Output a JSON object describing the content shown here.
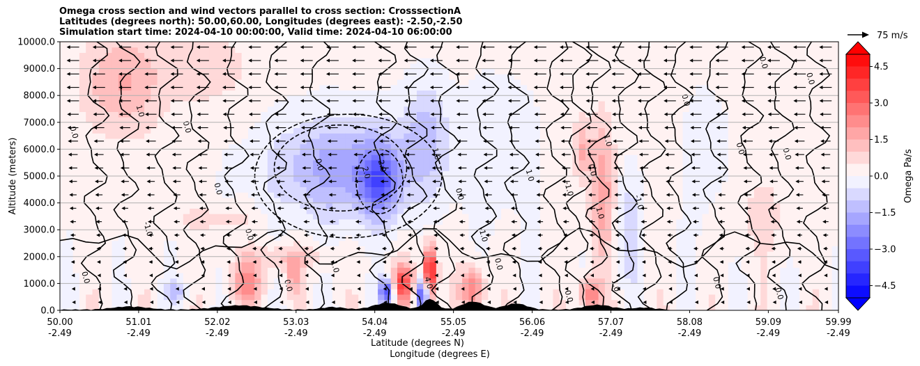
{
  "title_lines": [
    "Omega cross section and wind vectors parallel to cross section: CrosssectionA",
    "Latitudes (degrees north): 50.00,60.00, Longitudes (degrees east): -2.50,-2.50",
    "Simulation start time: 2024-04-10 00:00:00, Valid time: 2024-04-10 06:00:00"
  ],
  "chart_data": {
    "type": "heatmap",
    "title": "Omega cross section and wind vectors parallel to cross section: CrosssectionA",
    "ylabel": "Altitude (meters)",
    "xlabel_lines": [
      "Latitude (degrees N)",
      "Longitude (degrees E)"
    ],
    "ylim": [
      0,
      10000
    ],
    "yticks": [
      "0.0",
      "1000.0",
      "2000.0",
      "3000.0",
      "4000.0",
      "5000.0",
      "6000.0",
      "7000.0",
      "8000.0",
      "9000.0",
      "10000.0"
    ],
    "xticks": [
      {
        "lat": "50.00",
        "lon": "-2.49"
      },
      {
        "lat": "51.01",
        "lon": "-2.49"
      },
      {
        "lat": "52.02",
        "lon": "-2.49"
      },
      {
        "lat": "53.03",
        "lon": "-2.49"
      },
      {
        "lat": "54.04",
        "lon": "-2.49"
      },
      {
        "lat": "55.05",
        "lon": "-2.49"
      },
      {
        "lat": "56.06",
        "lon": "-2.49"
      },
      {
        "lat": "57.07",
        "lon": "-2.49"
      },
      {
        "lat": "58.08",
        "lon": "-2.49"
      },
      {
        "lat": "59.09",
        "lon": "-2.49"
      },
      {
        "lat": "59.99",
        "lon": "-2.49"
      }
    ],
    "colorbar": {
      "label": "Omega Pa/s",
      "ticks": [
        "4.5",
        "3.0",
        "1.5",
        "0.0",
        "−1.5",
        "−3.0",
        "−4.5"
      ],
      "range": [
        -5.0,
        5.0
      ],
      "levels": 20
    },
    "reference_vector": "75 m/s",
    "contour_labels": [
      "0.0",
      "1.0",
      "-1.0",
      "2.0",
      "-2.0",
      "3.0",
      "-3.0",
      "4.0"
    ],
    "regions": [
      {
        "lat_from": 53.3,
        "lat_to": 54.0,
        "alt_from": 3500,
        "alt_to": 7500,
        "omega": -2.0
      },
      {
        "lat_from": 54.0,
        "lat_to": 54.5,
        "alt_from": 3500,
        "alt_to": 6500,
        "omega": -3.5
      },
      {
        "lat_from": 50.3,
        "lat_to": 51.0,
        "alt_from": 6500,
        "alt_to": 10000,
        "omega": 1.5
      },
      {
        "lat_from": 54.2,
        "lat_to": 55.0,
        "alt_from": 0,
        "alt_to": 2000,
        "omega": 4.0
      },
      {
        "lat_from": 56.7,
        "lat_to": 57.1,
        "alt_from": 1500,
        "alt_to": 7000,
        "omega": 2.0
      }
    ],
    "grid": true
  },
  "colors": {
    "positive_max": "#ff0000",
    "negative_max": "#0000ff",
    "terrain": "#000000"
  }
}
